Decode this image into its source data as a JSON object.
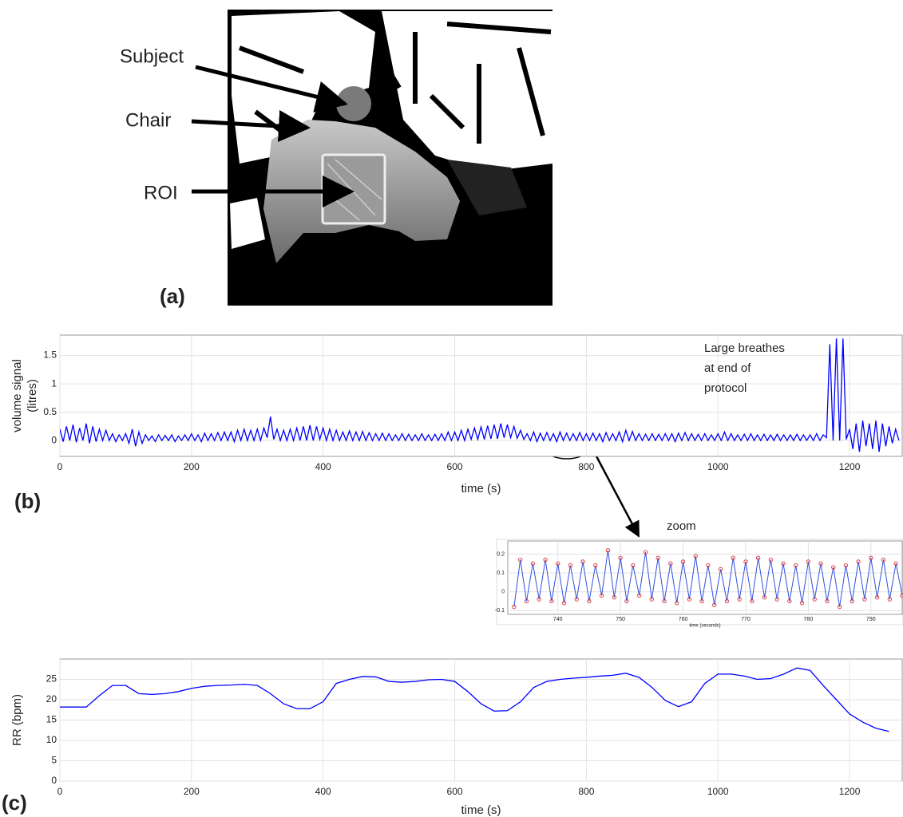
{
  "panel_labels": [
    "(a)",
    "(b)",
    "(c)"
  ],
  "image_annotations": [
    "Subject",
    "Chair",
    "ROI"
  ],
  "chart_data": [
    {
      "type": "line",
      "xlabel": "time (s)",
      "ylabel": [
        "volume signal",
        "(litres)"
      ],
      "annotation": [
        "Large breathes",
        "at end of",
        "protocol"
      ],
      "color": "#0000ff",
      "grid": true,
      "xlim": [
        0,
        1280
      ],
      "ylim": [
        -0.28,
        1.86
      ],
      "xticks": [
        0,
        200,
        400,
        600,
        800,
        1000,
        1200
      ],
      "yticks": [
        0,
        0.5,
        1,
        1.5
      ],
      "x": [
        0,
        5,
        10,
        15,
        20,
        25,
        30,
        35,
        40,
        45,
        50,
        55,
        60,
        65,
        70,
        75,
        80,
        85,
        90,
        95,
        100,
        105,
        110,
        115,
        120,
        125,
        130,
        135,
        140,
        145,
        150,
        155,
        160,
        165,
        170,
        175,
        180,
        185,
        190,
        195,
        200,
        205,
        210,
        215,
        220,
        225,
        230,
        235,
        240,
        245,
        250,
        255,
        260,
        265,
        270,
        275,
        280,
        285,
        290,
        295,
        300,
        305,
        310,
        315,
        320,
        325,
        330,
        335,
        340,
        345,
        350,
        355,
        360,
        365,
        370,
        375,
        380,
        385,
        390,
        395,
        400,
        405,
        410,
        415,
        420,
        425,
        430,
        435,
        440,
        445,
        450,
        455,
        460,
        465,
        470,
        475,
        480,
        485,
        490,
        495,
        500,
        505,
        510,
        515,
        520,
        525,
        530,
        535,
        540,
        545,
        550,
        555,
        560,
        565,
        570,
        575,
        580,
        585,
        590,
        595,
        600,
        605,
        610,
        615,
        620,
        625,
        630,
        635,
        640,
        645,
        650,
        655,
        660,
        665,
        670,
        675,
        680,
        685,
        690,
        695,
        700,
        705,
        710,
        715,
        720,
        725,
        730,
        735,
        740,
        745,
        750,
        755,
        760,
        765,
        770,
        775,
        780,
        785,
        790,
        795,
        800,
        805,
        810,
        815,
        820,
        825,
        830,
        835,
        840,
        845,
        850,
        855,
        860,
        865,
        870,
        875,
        880,
        885,
        890,
        895,
        900,
        905,
        910,
        915,
        920,
        925,
        930,
        935,
        940,
        945,
        950,
        955,
        960,
        965,
        970,
        975,
        980,
        985,
        990,
        995,
        1000,
        1005,
        1010,
        1015,
        1020,
        1025,
        1030,
        1035,
        1040,
        1045,
        1050,
        1055,
        1060,
        1065,
        1070,
        1075,
        1080,
        1085,
        1090,
        1095,
        1100,
        1105,
        1110,
        1115,
        1120,
        1125,
        1130,
        1135,
        1140,
        1145,
        1150,
        1155,
        1160,
        1165,
        1170,
        1175,
        1180,
        1185,
        1190,
        1195,
        1200,
        1205,
        1210,
        1215,
        1220,
        1225,
        1230,
        1235,
        1240,
        1245,
        1250,
        1255,
        1260,
        1265,
        1270,
        1275
      ],
      "values": [
        0.2,
        -0.02,
        0.25,
        0.0,
        0.28,
        -0.03,
        0.22,
        0.0,
        0.3,
        -0.05,
        0.25,
        -0.02,
        0.2,
        0.0,
        0.18,
        0.0,
        0.12,
        -0.02,
        0.1,
        0.0,
        0.12,
        -0.05,
        0.2,
        -0.1,
        0.15,
        -0.05,
        0.1,
        0.0,
        0.08,
        -0.02,
        0.1,
        0.0,
        0.09,
        0.0,
        0.1,
        -0.02,
        0.08,
        0.0,
        0.1,
        0.0,
        0.12,
        0.0,
        0.1,
        -0.02,
        0.13,
        0.0,
        0.12,
        0.0,
        0.14,
        0.0,
        0.15,
        0.0,
        0.15,
        -0.02,
        0.18,
        0.0,
        0.2,
        0.0,
        0.18,
        0.0,
        0.2,
        0.0,
        0.22,
        0.05,
        0.42,
        0.02,
        0.2,
        0.0,
        0.18,
        0.0,
        0.2,
        0.0,
        0.22,
        0.0,
        0.25,
        0.0,
        0.27,
        0.0,
        0.25,
        0.02,
        0.22,
        0.0,
        0.2,
        0.0,
        0.18,
        0.0,
        0.15,
        0.0,
        0.17,
        0.0,
        0.15,
        0.0,
        0.16,
        0.0,
        0.14,
        0.0,
        0.12,
        0.0,
        0.13,
        0.0,
        0.12,
        0.0,
        0.1,
        0.0,
        0.12,
        0.0,
        0.11,
        0.0,
        0.1,
        0.0,
        0.12,
        0.0,
        0.1,
        0.0,
        0.11,
        0.0,
        0.12,
        0.0,
        0.15,
        0.0,
        0.15,
        0.0,
        0.18,
        0.0,
        0.2,
        0.02,
        0.22,
        0.02,
        0.24,
        0.02,
        0.26,
        0.03,
        0.28,
        0.03,
        0.3,
        0.05,
        0.28,
        0.05,
        0.25,
        0.04,
        0.18,
        0.02,
        0.12,
        0.0,
        0.15,
        -0.02,
        0.13,
        0.0,
        0.14,
        0.0,
        0.12,
        -0.02,
        0.15,
        0.0,
        0.13,
        0.0,
        0.12,
        0.0,
        0.14,
        0.0,
        0.12,
        0.0,
        0.13,
        0.0,
        0.12,
        -0.02,
        0.14,
        0.0,
        0.12,
        0.0,
        0.15,
        -0.02,
        0.18,
        0.0,
        0.16,
        0.0,
        0.12,
        0.0,
        0.11,
        0.0,
        0.12,
        0.0,
        0.11,
        0.0,
        0.12,
        0.0,
        0.12,
        -0.02,
        0.13,
        0.0,
        0.14,
        0.0,
        0.12,
        0.0,
        0.11,
        0.0,
        0.12,
        0.0,
        0.1,
        0.0,
        0.12,
        0.0,
        0.15,
        0.0,
        0.12,
        0.0,
        0.1,
        0.0,
        0.11,
        0.0,
        0.12,
        0.0,
        0.1,
        0.0,
        0.11,
        0.0,
        0.1,
        0.0,
        0.11,
        0.0,
        0.1,
        0.0,
        0.1,
        0.0,
        0.11,
        0.0,
        0.1,
        0.0,
        0.1,
        0.0,
        0.12,
        0.0,
        0.1,
        0.05,
        1.7,
        0.0,
        1.8,
        0.0,
        1.8,
        0.02,
        0.2,
        -0.15,
        0.3,
        -0.2,
        0.35,
        -0.1,
        0.3,
        -0.15,
        0.35,
        -0.2,
        0.3,
        -0.1,
        0.25,
        -0.05,
        0.2,
        0.0
      ]
    },
    {
      "type": "line",
      "title": "zoom",
      "xlabel": "time (seconds)",
      "color": "#3050e0",
      "markers": true,
      "marker_color": "#e03030",
      "grid": true,
      "xlim": [
        732,
        795
      ],
      "ylim": [
        -0.12,
        0.27
      ],
      "xticks": [
        740,
        750,
        760,
        770,
        780,
        790
      ],
      "yticks": [
        -0.1,
        0,
        0.1,
        0.2
      ],
      "x": [
        733,
        734,
        735,
        736,
        737,
        738,
        739,
        740,
        741,
        742,
        743,
        744,
        745,
        746,
        747,
        748,
        749,
        750,
        751,
        752,
        753,
        754,
        755,
        756,
        757,
        758,
        759,
        760,
        761,
        762,
        763,
        764,
        765,
        766,
        767,
        768,
        769,
        770,
        771,
        772,
        773,
        774,
        775,
        776,
        777,
        778,
        779,
        780,
        781,
        782,
        783,
        784,
        785,
        786,
        787,
        788,
        789,
        790,
        791,
        792,
        793,
        794,
        795
      ],
      "values": [
        -0.08,
        0.17,
        -0.05,
        0.15,
        -0.04,
        0.17,
        -0.05,
        0.15,
        -0.06,
        0.14,
        -0.04,
        0.16,
        -0.05,
        0.14,
        -0.02,
        0.22,
        -0.03,
        0.18,
        -0.05,
        0.14,
        -0.02,
        0.21,
        -0.04,
        0.18,
        -0.05,
        0.15,
        -0.06,
        0.16,
        -0.04,
        0.19,
        -0.05,
        0.14,
        -0.07,
        0.12,
        -0.05,
        0.18,
        -0.04,
        0.16,
        -0.05,
        0.18,
        -0.03,
        0.17,
        -0.04,
        0.15,
        -0.05,
        0.14,
        -0.06,
        0.16,
        -0.04,
        0.15,
        -0.05,
        0.13,
        -0.08,
        0.14,
        -0.05,
        0.16,
        -0.04,
        0.18,
        -0.03,
        0.17,
        -0.04,
        0.15,
        -0.02
      ]
    },
    {
      "type": "line",
      "xlabel": "time (s)",
      "ylabel": [
        "RR (bpm)"
      ],
      "color": "#0000ff",
      "grid": true,
      "xlim": [
        0,
        1280
      ],
      "ylim": [
        0,
        30
      ],
      "xticks": [
        0,
        200,
        400,
        600,
        800,
        1000,
        1200
      ],
      "yticks": [
        0,
        5,
        10,
        15,
        20,
        25
      ],
      "x": [
        0,
        20,
        40,
        60,
        80,
        100,
        120,
        140,
        160,
        180,
        200,
        220,
        240,
        260,
        280,
        300,
        320,
        340,
        360,
        380,
        400,
        420,
        440,
        460,
        480,
        500,
        520,
        540,
        560,
        580,
        600,
        620,
        640,
        660,
        680,
        700,
        720,
        740,
        760,
        780,
        800,
        820,
        840,
        860,
        880,
        900,
        920,
        940,
        960,
        980,
        1000,
        1020,
        1040,
        1060,
        1080,
        1100,
        1120,
        1140,
        1160,
        1180,
        1200,
        1220,
        1240,
        1260
      ],
      "values": [
        18.2,
        18.2,
        18.2,
        21,
        23.5,
        23.5,
        21.5,
        21.3,
        21.5,
        22,
        22.8,
        23.3,
        23.5,
        23.6,
        23.8,
        23.5,
        21.5,
        19,
        17.8,
        17.8,
        19.5,
        24,
        25,
        25.7,
        25.6,
        24.5,
        24.3,
        24.5,
        24.9,
        25,
        24.5,
        22,
        19,
        17.2,
        17.3,
        19.5,
        23,
        24.5,
        25,
        25.3,
        25.5,
        25.8,
        26,
        26.5,
        25.5,
        23,
        19.8,
        18.3,
        19.5,
        24,
        26.3,
        26.3,
        25.8,
        25,
        25.2,
        26.3,
        27.8,
        27.2,
        23.5,
        20,
        16.5,
        14.5,
        13,
        12.2
      ]
    }
  ]
}
